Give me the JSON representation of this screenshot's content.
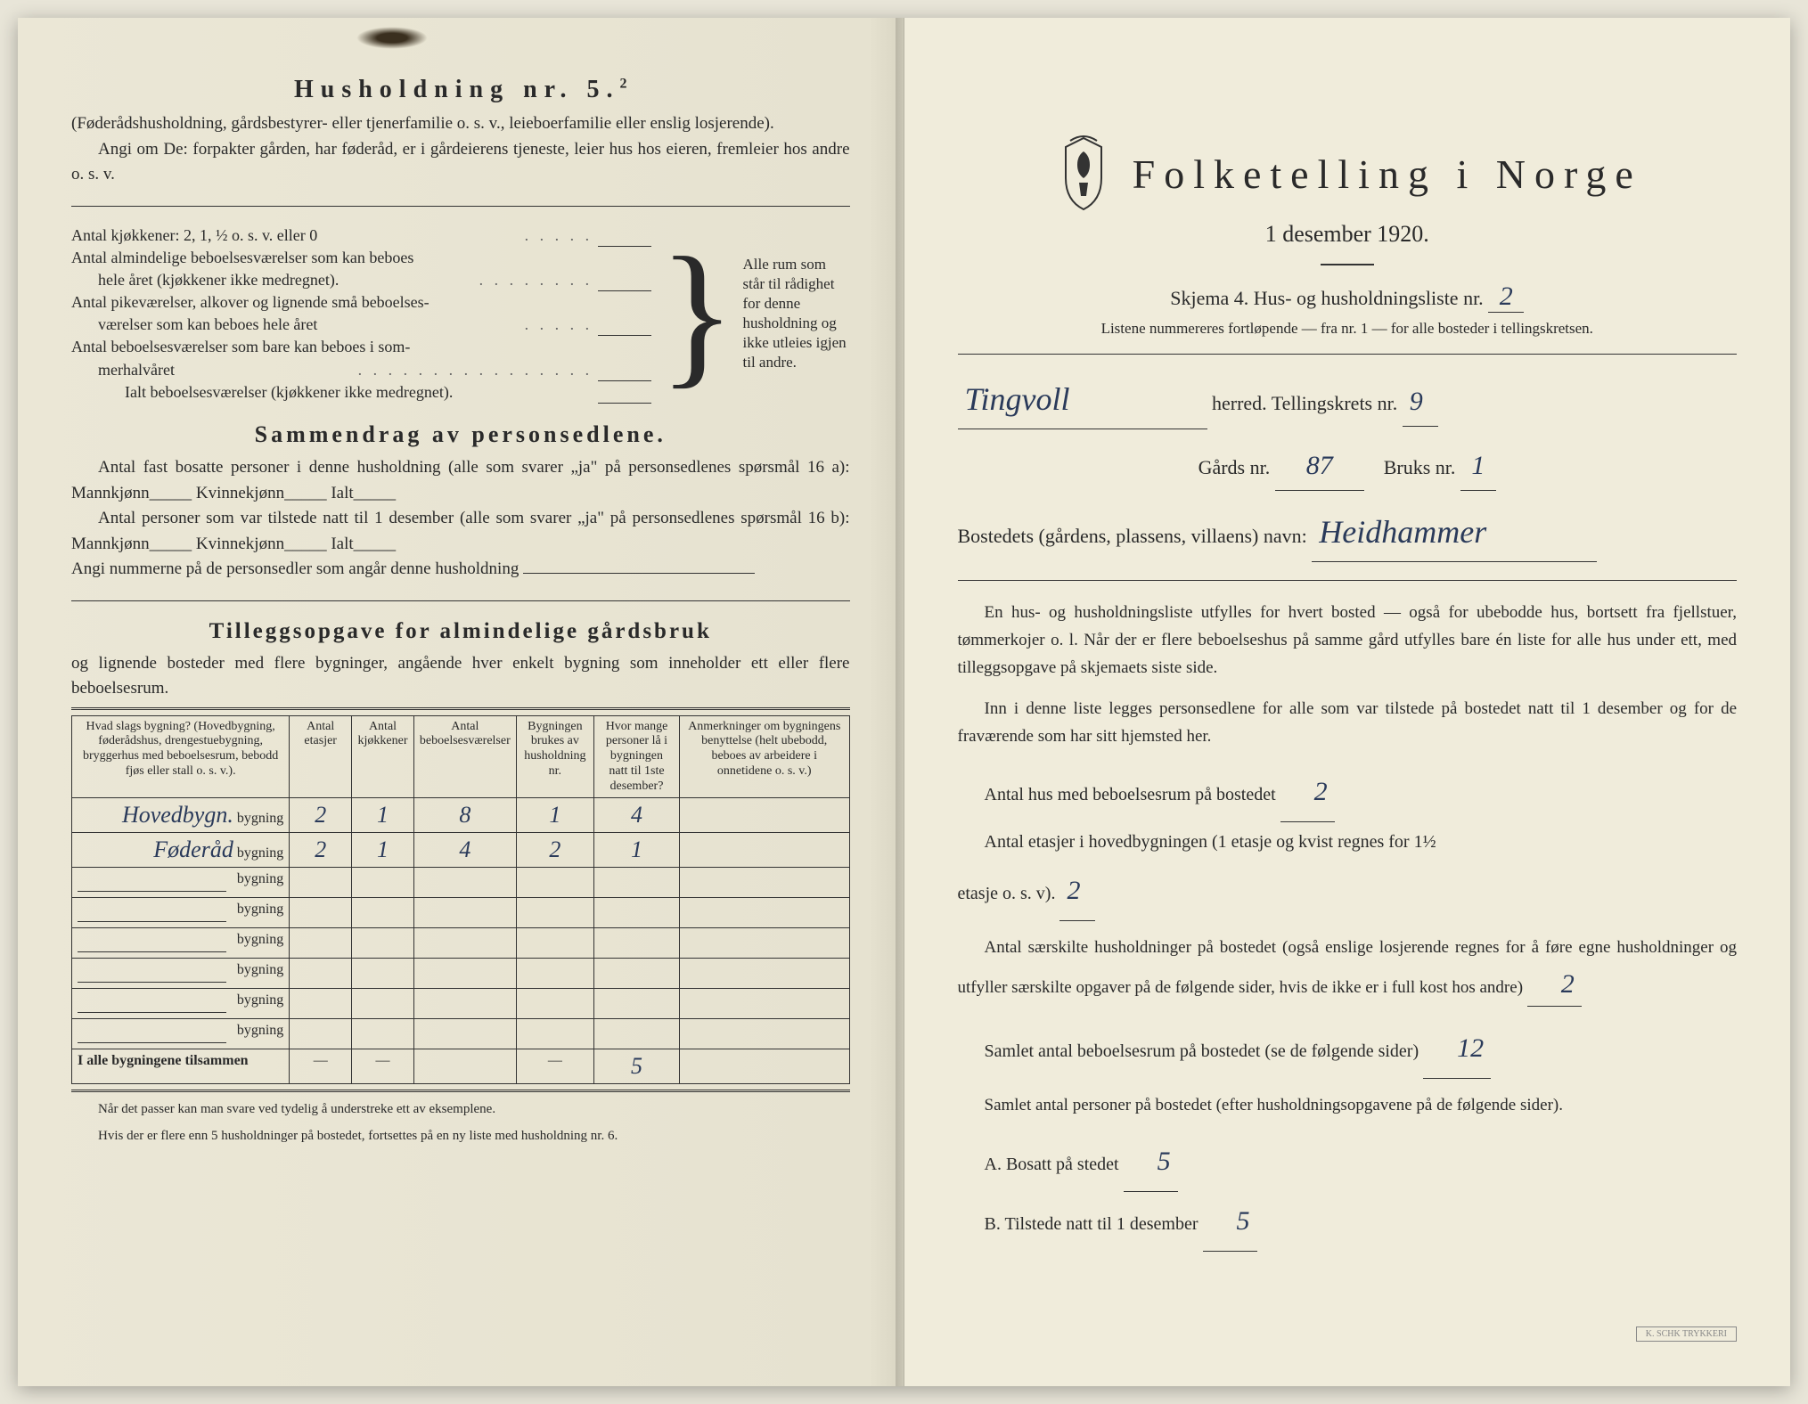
{
  "left": {
    "h5_title": "Husholdning nr. 5.",
    "h5_sup": "2",
    "h5_p1": "(Føderådshusholdning, gårdsbestyrer- eller tjenerfamilie o. s. v., leieboerfamilie eller enslig losjerende).",
    "h5_p2": "Angi om De: forpakter gården, har føderåd, er i gårdeierens tjeneste, leier hus hos eieren, fremleier hos andre o. s. v.",
    "rooms": {
      "r1": "Antal kjøkkener: 2, 1, ½ o. s. v. eller 0",
      "r2a": "Antal almindelige beboelsesværelser som kan beboes",
      "r2b": "hele året (kjøkkener ikke medregnet).",
      "r3a": "Antal pikeværelser, alkover og lignende små beboelses-",
      "r3b": "værelser som kan beboes hele året",
      "r4a": "Antal beboelsesværelser som bare kan beboes i som-",
      "r4b": "merhalvåret",
      "r5": "Ialt beboelsesværelser (kjøkkener ikke medregnet).",
      "bracket": "Alle rum som står til rådighet for denne husholdning og ikke utleies igjen til andre."
    },
    "sammen_h": "Sammendrag av personsedlene.",
    "sammen_p1": "Antal fast bosatte personer i denne husholdning (alle som svarer „ja\" på personsedlenes spørsmål 16 a): Mannkjønn_____ Kvinnekjønn_____ Ialt_____",
    "sammen_p2": "Antal personer som var tilstede natt til 1 desember (alle som svarer „ja\" på personsedlenes spørsmål 16 b): Mannkjønn_____ Kvinnekjønn_____ Ialt_____",
    "sammen_p3": "Angi nummerne på de personsedler som angår denne husholdning",
    "tillegg_h": "Tilleggsopgave for almindelige gårdsbruk",
    "tillegg_sub": "og lignende bosteder med flere bygninger, angående hver enkelt bygning som inneholder ett eller flere beboelsesrum.",
    "table": {
      "col1": "Hvad slags bygning?\n(Hovedbygning, føderådshus, drengestuebygning, bryggerhus med beboelsesrum, bebodd fjøs eller stall o. s. v.).",
      "col2": "Antal etasjer",
      "col3": "Antal kjøkkener",
      "col4": "Antal beboelsesværelser",
      "col5": "Bygningen brukes av husholdning nr.",
      "col6": "Hvor mange personer lå i bygningen natt til 1ste desember?",
      "col7": "Anmerkninger om bygningens benyttelse (helt ubebodd, beboes av arbeidere i onnetidene o. s. v.)",
      "bygning_word": "bygning",
      "rows": [
        {
          "name": "Hovedbygn.",
          "c2": "2",
          "c3": "1",
          "c4": "8",
          "c5": "1",
          "c6": "4",
          "c7": ""
        },
        {
          "name": "Føderåd",
          "c2": "2",
          "c3": "1",
          "c4": "4",
          "c5": "2",
          "c6": "1",
          "c7": ""
        }
      ],
      "sum_label": "I alle bygningene tilsammen",
      "sum_c6": "5"
    },
    "foot1": "Når det passer kan man svare ved tydelig å understreke ett av eksemplene.",
    "foot2": "Hvis der er flere enn 5 husholdninger på bostedet, fortsettes på en ny liste med husholdning nr. 6."
  },
  "right": {
    "title": "Folketelling i Norge",
    "subtitle": "1 desember 1920.",
    "schema": "Skjema 4.   Hus- og husholdningsliste nr.",
    "schema_nr": "2",
    "listnote": "Listene nummereres fortløpende — fra nr. 1 — for alle bosteder i tellingskretsen.",
    "herred_hw": "Tingvoll",
    "herred_txt": "herred.   Tellingskrets nr.",
    "krets_nr": "9",
    "gards": "Gårds nr.",
    "gards_nr": "87",
    "bruks": "Bruks nr.",
    "bruks_nr": "1",
    "bosted": "Bostedets (gårdens, plassens, villaens) navn:",
    "bosted_hw": "Heidhammer",
    "p1": "En hus- og husholdningsliste utfylles for hvert bosted — også for ubebodde hus, bortsett fra fjellstuer, tømmerkojer o. l.  Når der er flere beboelseshus på samme gård utfylles bare én liste for alle hus under ett, med tilleggsopgave på skjemaets siste side.",
    "p2": "Inn i denne liste legges personsedlene for alle som var tilstede på bostedet natt til 1 desember og for de fraværende som har sitt hjemsted her.",
    "l1": "Antal hus med beboelsesrum på bostedet",
    "l1_hw": "2",
    "l2a": "Antal etasjer i hovedbygningen (1 etasje og kvist regnes for 1½",
    "l2b": "etasje o. s. v).",
    "l2_hw": "2",
    "l3": "Antal særskilte husholdninger på bostedet (også enslige losjerende regnes for å føre egne husholdninger og utfyller særskilte opgaver på de følgende sider, hvis de ikke er i full kost hos andre)",
    "l3_hw": "2",
    "l4": "Samlet antal beboelsesrum på bostedet (se de følgende sider)",
    "l4_hw": "12",
    "l5": "Samlet antal personer på bostedet (efter husholdningsopgavene på de følgende sider).",
    "lA": "A.  Bosatt på stedet",
    "lA_hw": "5",
    "lB": "B.  Tilstede natt til 1 desember",
    "lB_hw": "5"
  }
}
